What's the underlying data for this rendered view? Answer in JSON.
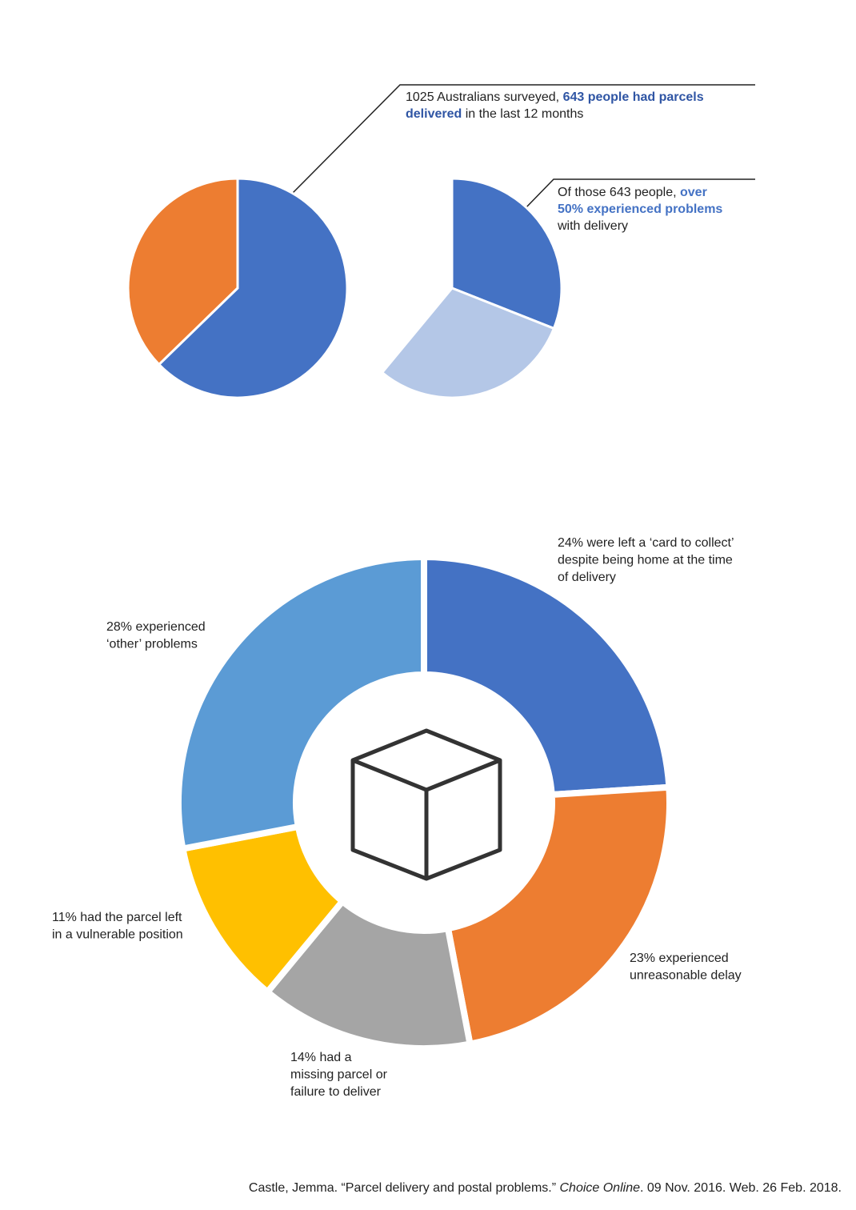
{
  "chart_data": [
    {
      "type": "pie",
      "values": [
        643,
        382
      ],
      "colors": [
        "#4472c4",
        "#ed7d31"
      ],
      "annotation": [
        [
          {
            "text": "1025 Australians surveyed, "
          },
          {
            "text": "643 people had parcels",
            "bold": true,
            "color": "#2f55a4"
          }
        ],
        [
          {
            "text": "delivered",
            "bold": true,
            "color": "#2f55a4"
          },
          {
            "text": " in the last 12 months"
          }
        ]
      ]
    },
    {
      "type": "pie",
      "values": [
        31,
        30,
        39
      ],
      "colors": [
        "#4472c4",
        "#b4c7e7",
        "none"
      ],
      "annotation": [
        [
          {
            "text": "Of those 643 people, "
          },
          {
            "text": "over",
            "bold": true,
            "color": "#4472c4"
          }
        ],
        [
          {
            "text": "50% experienced problems",
            "bold": true,
            "color": "#4472c4"
          }
        ],
        [
          {
            "text": "with delivery"
          }
        ]
      ]
    },
    {
      "type": "donut",
      "values": [
        24,
        23,
        14,
        11,
        28
      ],
      "colors": [
        "#4472c4",
        "#ed7d31",
        "#a5a5a5",
        "#ffc000",
        "#5b9bd5"
      ],
      "labels": [
        [
          "24% were left a ‘card to collect’",
          "despite being home at the time",
          "of delivery"
        ],
        [
          "23% experienced",
          "unreasonable delay"
        ],
        [
          "14% had a",
          "missing parcel or",
          "failure to deliver"
        ],
        [
          "11% had the parcel left",
          "in a vulnerable position"
        ],
        [
          "28% experienced",
          "‘other’ problems"
        ]
      ]
    }
  ],
  "citation": [
    {
      "text": "Castle, Jemma. “Parcel delivery and postal problems.” "
    },
    {
      "text": "Choice Online",
      "italic": true
    },
    {
      "text": ". 09 Nov. 2016. Web. 26 Feb. 2018."
    }
  ]
}
